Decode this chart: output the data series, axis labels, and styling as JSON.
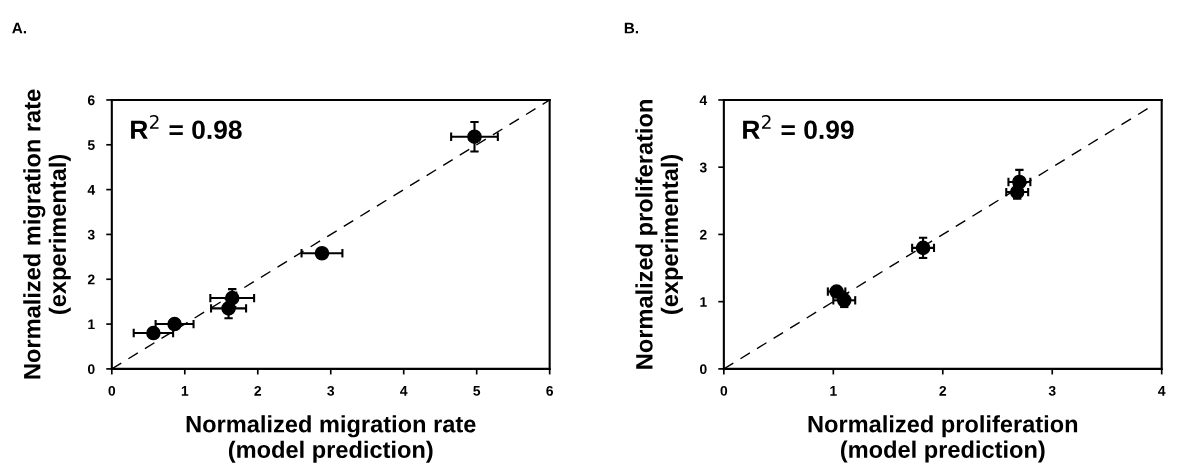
{
  "chart_data": [
    {
      "type": "scatter",
      "xlabel": "Normalized migration rate\n(model prediction)",
      "ylabel": "Normalized migration rate\n(experimental)",
      "annotations": [
        "A.",
        "R$^{2}$ = 0.98"
      ],
      "xlim": [
        0,
        6
      ],
      "ylim": [
        0,
        6
      ],
      "xticks": [
        0,
        1,
        2,
        3,
        4,
        5,
        6
      ],
      "yticks": [
        0,
        1,
        2,
        3,
        4,
        5,
        6
      ],
      "marker": "circle",
      "series": [
        {
          "color": "#000000",
          "x": [
            0.57,
            0.86,
            1.6,
            1.65,
            2.88,
            4.97
          ],
          "values": [
            0.8,
            1.0,
            1.35,
            1.58,
            2.58,
            5.18
          ],
          "errors": [
            null,
            null,
            0.22,
            0.2,
            null,
            0.33
          ],
          "xerrors": [
            0.27,
            0.26,
            0.24,
            0.3,
            0.28,
            0.32
          ]
        },
        {
          "type": "line",
          "color": "#000000",
          "line_style": "dashed",
          "marker": "none",
          "x": [
            0,
            6
          ],
          "values": [
            0,
            6
          ]
        }
      ]
    },
    {
      "type": "scatter",
      "xlabel": "Normalized proliferation\n(model prediction)",
      "ylabel": "Normalized proliferation\n(experimental)",
      "annotations": [
        "B.",
        "R$^{2}$ = 0.99"
      ],
      "xlim": [
        0,
        4
      ],
      "ylim": [
        0,
        4
      ],
      "xticks": [
        0,
        1,
        2,
        3,
        4
      ],
      "yticks": [
        0,
        1,
        2,
        3,
        4
      ],
      "marker": "circle",
      "series": [
        {
          "color": "#000000",
          "x": [
            1.03,
            1.1,
            1.82,
            2.7,
            2.68
          ],
          "values": [
            1.15,
            1.02,
            1.8,
            2.78,
            2.63
          ],
          "errors": [
            null,
            0.1,
            0.15,
            0.18,
            0.1
          ],
          "xerrors": [
            0.08,
            0.1,
            0.1,
            0.1,
            0.1
          ]
        },
        {
          "type": "line",
          "color": "#000000",
          "line_style": "dashed",
          "marker": "none",
          "x": [
            0,
            3.9
          ],
          "values": [
            0,
            3.9
          ]
        }
      ]
    }
  ]
}
